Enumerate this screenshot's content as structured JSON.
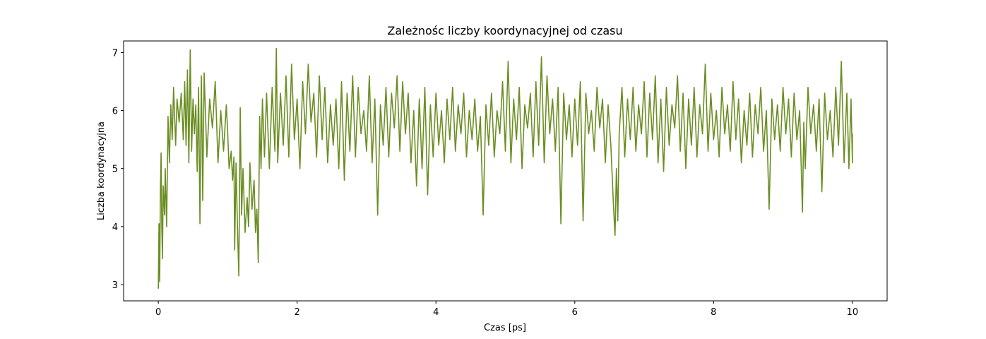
{
  "chart_data": {
    "type": "line",
    "title": "Zależnośc liczby koordynacyjnej od czasu",
    "xlabel": "Czas [ps]",
    "ylabel": "Liczba koordynacyjna",
    "xlim": [
      -0.5,
      10.5
    ],
    "ylim": [
      2.72,
      7.2
    ],
    "xticks": [
      0,
      2,
      4,
      6,
      8,
      10
    ],
    "yticks": [
      3,
      4,
      5,
      6,
      7
    ],
    "grid": false,
    "legend": "none",
    "line_color": "#6b8e23",
    "series": [
      {
        "points": [
          [
            0.0,
            2.93
          ],
          [
            0.01,
            4.05
          ],
          [
            0.02,
            3.05
          ],
          [
            0.03,
            4.6
          ],
          [
            0.04,
            5.27
          ],
          [
            0.05,
            4.0
          ],
          [
            0.06,
            3.45
          ],
          [
            0.07,
            4.7
          ],
          [
            0.09,
            4.2
          ],
          [
            0.1,
            5.0
          ],
          [
            0.12,
            4.0
          ],
          [
            0.14,
            5.9
          ],
          [
            0.16,
            5.1
          ],
          [
            0.18,
            6.1
          ],
          [
            0.2,
            5.5
          ],
          [
            0.22,
            6.4
          ],
          [
            0.25,
            5.4
          ],
          [
            0.27,
            6.2
          ],
          [
            0.3,
            5.8
          ],
          [
            0.33,
            6.3
          ],
          [
            0.36,
            5.5
          ],
          [
            0.38,
            6.5
          ],
          [
            0.4,
            5.4
          ],
          [
            0.42,
            6.7
          ],
          [
            0.44,
            5.1
          ],
          [
            0.46,
            7.05
          ],
          [
            0.48,
            5.3
          ],
          [
            0.5,
            6.2
          ],
          [
            0.52,
            5.6
          ],
          [
            0.54,
            6.1
          ],
          [
            0.56,
            4.95
          ],
          [
            0.58,
            6.4
          ],
          [
            0.6,
            4.05
          ],
          [
            0.62,
            6.6
          ],
          [
            0.64,
            4.45
          ],
          [
            0.66,
            6.65
          ],
          [
            0.7,
            5.2
          ],
          [
            0.74,
            6.2
          ],
          [
            0.78,
            5.7
          ],
          [
            0.82,
            6.5
          ],
          [
            0.86,
            5.1
          ],
          [
            0.9,
            6.0
          ],
          [
            0.94,
            5.3
          ],
          [
            0.98,
            6.1
          ],
          [
            1.0,
            5.6
          ],
          [
            1.02,
            5.0
          ],
          [
            1.05,
            5.3
          ],
          [
            1.07,
            4.8
          ],
          [
            1.09,
            5.2
          ],
          [
            1.1,
            3.6
          ],
          [
            1.12,
            5.1
          ],
          [
            1.14,
            4.0
          ],
          [
            1.16,
            3.15
          ],
          [
            1.18,
            6.05
          ],
          [
            1.2,
            4.2
          ],
          [
            1.22,
            5.0
          ],
          [
            1.25,
            3.9
          ],
          [
            1.28,
            4.5
          ],
          [
            1.3,
            4.0
          ],
          [
            1.32,
            5.1
          ],
          [
            1.35,
            4.3
          ],
          [
            1.38,
            4.8
          ],
          [
            1.4,
            3.9
          ],
          [
            1.42,
            4.3
          ],
          [
            1.44,
            3.38
          ],
          [
            1.46,
            5.9
          ],
          [
            1.48,
            5.0
          ],
          [
            1.5,
            6.2
          ],
          [
            1.53,
            5.2
          ],
          [
            1.56,
            6.3
          ],
          [
            1.6,
            5.0
          ],
          [
            1.64,
            6.4
          ],
          [
            1.68,
            5.3
          ],
          [
            1.7,
            7.07
          ],
          [
            1.72,
            5.1
          ],
          [
            1.76,
            6.3
          ],
          [
            1.8,
            5.4
          ],
          [
            1.84,
            6.6
          ],
          [
            1.88,
            5.2
          ],
          [
            1.92,
            6.8
          ],
          [
            1.96,
            5.5
          ],
          [
            2.0,
            6.2
          ],
          [
            2.04,
            5.0
          ],
          [
            2.08,
            6.5
          ],
          [
            2.12,
            5.6
          ],
          [
            2.16,
            6.8
          ],
          [
            2.2,
            5.8
          ],
          [
            2.24,
            6.3
          ],
          [
            2.28,
            5.2
          ],
          [
            2.32,
            6.6
          ],
          [
            2.36,
            5.5
          ],
          [
            2.4,
            6.4
          ],
          [
            2.44,
            5.1
          ],
          [
            2.48,
            6.1
          ],
          [
            2.52,
            5.4
          ],
          [
            2.56,
            6.2
          ],
          [
            2.6,
            5.0
          ],
          [
            2.64,
            6.5
          ],
          [
            2.68,
            4.8
          ],
          [
            2.72,
            6.3
          ],
          [
            2.76,
            5.3
          ],
          [
            2.8,
            6.6
          ],
          [
            2.84,
            5.2
          ],
          [
            2.88,
            6.4
          ],
          [
            2.92,
            5.6
          ],
          [
            2.96,
            6.0
          ],
          [
            3.0,
            5.3
          ],
          [
            3.04,
            6.6
          ],
          [
            3.08,
            5.1
          ],
          [
            3.12,
            6.2
          ],
          [
            3.16,
            4.2
          ],
          [
            3.2,
            6.1
          ],
          [
            3.24,
            5.4
          ],
          [
            3.28,
            6.4
          ],
          [
            3.32,
            5.2
          ],
          [
            3.36,
            6.3
          ],
          [
            3.4,
            5.7
          ],
          [
            3.44,
            6.6
          ],
          [
            3.48,
            5.3
          ],
          [
            3.52,
            6.5
          ],
          [
            3.56,
            5.6
          ],
          [
            3.6,
            6.3
          ],
          [
            3.64,
            5.1
          ],
          [
            3.68,
            6.0
          ],
          [
            3.72,
            4.7
          ],
          [
            3.76,
            6.2
          ],
          [
            3.8,
            5.0
          ],
          [
            3.84,
            6.4
          ],
          [
            3.88,
            4.55
          ],
          [
            3.92,
            6.1
          ],
          [
            3.96,
            5.2
          ],
          [
            4.0,
            6.3
          ],
          [
            4.04,
            5.4
          ],
          [
            4.08,
            6.0
          ],
          [
            4.12,
            5.1
          ],
          [
            4.16,
            6.2
          ],
          [
            4.2,
            5.5
          ],
          [
            4.24,
            6.4
          ],
          [
            4.28,
            5.3
          ],
          [
            4.32,
            6.1
          ],
          [
            4.36,
            5.6
          ],
          [
            4.4,
            6.3
          ],
          [
            4.44,
            5.2
          ],
          [
            4.48,
            6.0
          ],
          [
            4.52,
            5.5
          ],
          [
            4.56,
            6.2
          ],
          [
            4.6,
            5.3
          ],
          [
            4.64,
            5.9
          ],
          [
            4.68,
            4.2
          ],
          [
            4.72,
            6.1
          ],
          [
            4.76,
            5.4
          ],
          [
            4.8,
            6.3
          ],
          [
            4.84,
            5.2
          ],
          [
            4.88,
            6.0
          ],
          [
            4.92,
            5.6
          ],
          [
            4.96,
            6.5
          ],
          [
            5.0,
            5.3
          ],
          [
            5.04,
            6.85
          ],
          [
            5.08,
            5.1
          ],
          [
            5.12,
            6.2
          ],
          [
            5.16,
            5.5
          ],
          [
            5.2,
            6.4
          ],
          [
            5.24,
            5.0
          ],
          [
            5.28,
            6.1
          ],
          [
            5.32,
            5.7
          ],
          [
            5.36,
            6.3
          ],
          [
            5.4,
            5.2
          ],
          [
            5.44,
            6.5
          ],
          [
            5.48,
            5.4
          ],
          [
            5.52,
            6.93
          ],
          [
            5.56,
            5.1
          ],
          [
            5.6,
            6.6
          ],
          [
            5.64,
            5.6
          ],
          [
            5.68,
            6.2
          ],
          [
            5.72,
            5.3
          ],
          [
            5.76,
            6.4
          ],
          [
            5.8,
            4.05
          ],
          [
            5.84,
            6.3
          ],
          [
            5.88,
            5.5
          ],
          [
            5.92,
            6.1
          ],
          [
            5.96,
            5.2
          ],
          [
            6.0,
            6.2
          ],
          [
            6.04,
            5.4
          ],
          [
            6.08,
            6.5
          ],
          [
            6.12,
            4.1
          ],
          [
            6.16,
            6.3
          ],
          [
            6.2,
            5.6
          ],
          [
            6.24,
            6.0
          ],
          [
            6.28,
            5.3
          ],
          [
            6.32,
            6.4
          ],
          [
            6.36,
            5.7
          ],
          [
            6.4,
            6.2
          ],
          [
            6.44,
            5.1
          ],
          [
            6.48,
            6.1
          ],
          [
            6.52,
            5.4
          ],
          [
            6.56,
            4.3
          ],
          [
            6.58,
            3.85
          ],
          [
            6.6,
            5.0
          ],
          [
            6.62,
            4.1
          ],
          [
            6.64,
            5.6
          ],
          [
            6.68,
            6.4
          ],
          [
            6.72,
            5.2
          ],
          [
            6.76,
            6.2
          ],
          [
            6.8,
            5.5
          ],
          [
            6.84,
            6.4
          ],
          [
            6.88,
            5.3
          ],
          [
            6.92,
            6.1
          ],
          [
            6.96,
            5.6
          ],
          [
            7.0,
            6.5
          ],
          [
            7.04,
            5.2
          ],
          [
            7.08,
            6.3
          ],
          [
            7.12,
            5.5
          ],
          [
            7.16,
            6.6
          ],
          [
            7.2,
            5.1
          ],
          [
            7.24,
            6.2
          ],
          [
            7.28,
            4.95
          ],
          [
            7.32,
            6.4
          ],
          [
            7.36,
            5.4
          ],
          [
            7.4,
            6.1
          ],
          [
            7.44,
            5.7
          ],
          [
            7.48,
            6.6
          ],
          [
            7.52,
            5.3
          ],
          [
            7.56,
            6.3
          ],
          [
            7.6,
            5.0
          ],
          [
            7.64,
            6.2
          ],
          [
            7.68,
            5.4
          ],
          [
            7.72,
            6.4
          ],
          [
            7.76,
            5.2
          ],
          [
            7.8,
            6.1
          ],
          [
            7.84,
            5.6
          ],
          [
            7.88,
            6.8
          ],
          [
            7.92,
            5.3
          ],
          [
            7.96,
            6.3
          ],
          [
            8.0,
            5.5
          ],
          [
            8.04,
            6.0
          ],
          [
            8.08,
            5.2
          ],
          [
            8.12,
            6.4
          ],
          [
            8.16,
            5.6
          ],
          [
            8.2,
            6.1
          ],
          [
            8.24,
            5.3
          ],
          [
            8.28,
            6.5
          ],
          [
            8.32,
            5.5
          ],
          [
            8.36,
            6.2
          ],
          [
            8.4,
            5.1
          ],
          [
            8.44,
            6.0
          ],
          [
            8.48,
            5.4
          ],
          [
            8.52,
            6.3
          ],
          [
            8.56,
            5.2
          ],
          [
            8.6,
            6.1
          ],
          [
            8.64,
            5.6
          ],
          [
            8.68,
            6.4
          ],
          [
            8.72,
            5.3
          ],
          [
            8.76,
            6.0
          ],
          [
            8.8,
            4.3
          ],
          [
            8.84,
            6.2
          ],
          [
            8.88,
            5.5
          ],
          [
            8.92,
            6.1
          ],
          [
            8.96,
            5.3
          ],
          [
            9.0,
            6.4
          ],
          [
            9.04,
            5.6
          ],
          [
            9.08,
            6.2
          ],
          [
            9.12,
            5.2
          ],
          [
            9.16,
            6.3
          ],
          [
            9.2,
            5.5
          ],
          [
            9.24,
            6.0
          ],
          [
            9.28,
            4.25
          ],
          [
            9.3,
            5.8
          ],
          [
            9.32,
            5.0
          ],
          [
            9.36,
            6.4
          ],
          [
            9.4,
            5.6
          ],
          [
            9.44,
            6.1
          ],
          [
            9.48,
            5.3
          ],
          [
            9.52,
            6.2
          ],
          [
            9.56,
            4.6
          ],
          [
            9.6,
            6.3
          ],
          [
            9.64,
            5.5
          ],
          [
            9.68,
            6.0
          ],
          [
            9.72,
            5.2
          ],
          [
            9.76,
            6.4
          ],
          [
            9.8,
            5.4
          ],
          [
            9.84,
            6.85
          ],
          [
            9.88,
            5.1
          ],
          [
            9.92,
            6.3
          ],
          [
            9.95,
            5.0
          ],
          [
            9.98,
            6.2
          ],
          [
            10.0,
            5.1
          ],
          [
            10.0,
            5.6
          ]
        ]
      }
    ]
  }
}
